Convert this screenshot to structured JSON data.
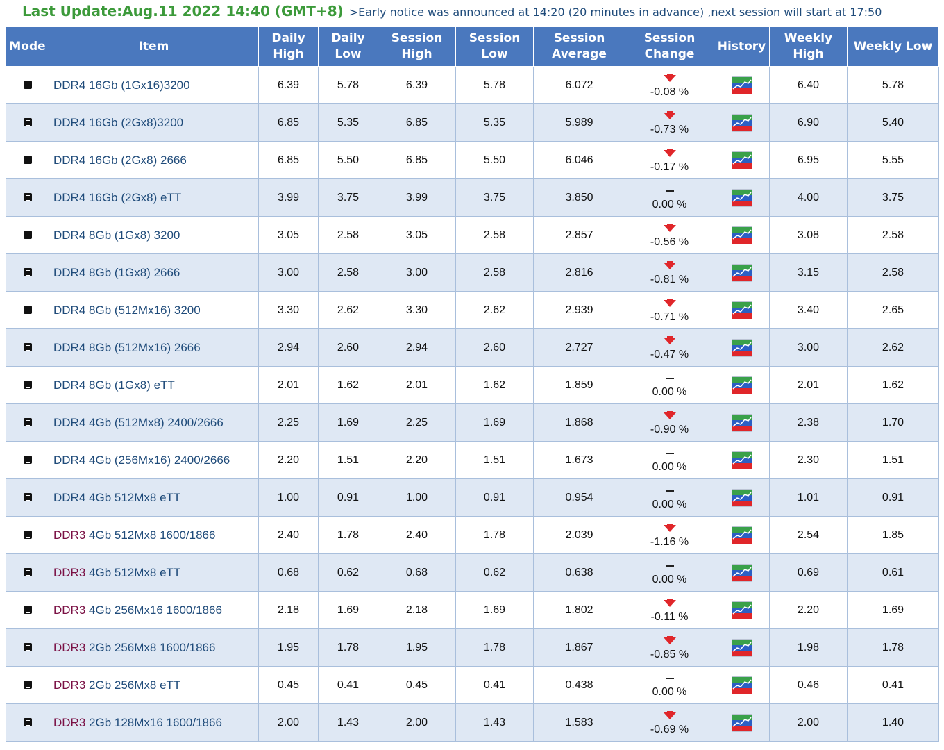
{
  "header": {
    "last_update": "Last Update:Aug.11 2022 14:40 (GMT+8)",
    "notice": ">Early notice was announced at 14:20 (20 minutes in advance) ,next session will start at 17:50"
  },
  "table": {
    "columns": [
      "Mode",
      "Item",
      "Daily High",
      "Daily Low",
      "Session High",
      "Session Low",
      "Session Average",
      "Session Change",
      "History",
      "Weekly High",
      "Weekly Low"
    ],
    "rows": [
      {
        "gen": "DDR4",
        "spec": "16Gb (1Gx16)3200",
        "daily_high": "6.39",
        "daily_low": "5.78",
        "session_high": "6.39",
        "session_low": "5.78",
        "session_avg": "6.072",
        "dir": "down",
        "change": "-0.08 %",
        "weekly_high": "6.40",
        "weekly_low": "5.78"
      },
      {
        "gen": "DDR4",
        "spec": "16Gb (2Gx8)3200",
        "daily_high": "6.85",
        "daily_low": "5.35",
        "session_high": "6.85",
        "session_low": "5.35",
        "session_avg": "5.989",
        "dir": "down",
        "change": "-0.73 %",
        "weekly_high": "6.90",
        "weekly_low": "5.40"
      },
      {
        "gen": "DDR4",
        "spec": "16Gb (2Gx8) 2666",
        "daily_high": "6.85",
        "daily_low": "5.50",
        "session_high": "6.85",
        "session_low": "5.50",
        "session_avg": "6.046",
        "dir": "down",
        "change": "-0.17 %",
        "weekly_high": "6.95",
        "weekly_low": "5.55"
      },
      {
        "gen": "DDR4",
        "spec": "16Gb (2Gx8) eTT",
        "daily_high": "3.99",
        "daily_low": "3.75",
        "session_high": "3.99",
        "session_low": "3.75",
        "session_avg": "3.850",
        "dir": "flat",
        "change": "0.00 %",
        "weekly_high": "4.00",
        "weekly_low": "3.75"
      },
      {
        "gen": "DDR4",
        "spec": "8Gb (1Gx8) 3200",
        "daily_high": "3.05",
        "daily_low": "2.58",
        "session_high": "3.05",
        "session_low": "2.58",
        "session_avg": "2.857",
        "dir": "down",
        "change": "-0.56 %",
        "weekly_high": "3.08",
        "weekly_low": "2.58"
      },
      {
        "gen": "DDR4",
        "spec": "8Gb (1Gx8) 2666",
        "daily_high": "3.00",
        "daily_low": "2.58",
        "session_high": "3.00",
        "session_low": "2.58",
        "session_avg": "2.816",
        "dir": "down",
        "change": "-0.81 %",
        "weekly_high": "3.15",
        "weekly_low": "2.58"
      },
      {
        "gen": "DDR4",
        "spec": "8Gb (512Mx16) 3200",
        "daily_high": "3.30",
        "daily_low": "2.62",
        "session_high": "3.30",
        "session_low": "2.62",
        "session_avg": "2.939",
        "dir": "down",
        "change": "-0.71 %",
        "weekly_high": "3.40",
        "weekly_low": "2.65"
      },
      {
        "gen": "DDR4",
        "spec": "8Gb (512Mx16) 2666",
        "daily_high": "2.94",
        "daily_low": "2.60",
        "session_high": "2.94",
        "session_low": "2.60",
        "session_avg": "2.727",
        "dir": "down",
        "change": "-0.47 %",
        "weekly_high": "3.00",
        "weekly_low": "2.62"
      },
      {
        "gen": "DDR4",
        "spec": "8Gb (1Gx8) eTT",
        "daily_high": "2.01",
        "daily_low": "1.62",
        "session_high": "2.01",
        "session_low": "1.62",
        "session_avg": "1.859",
        "dir": "flat",
        "change": "0.00 %",
        "weekly_high": "2.01",
        "weekly_low": "1.62"
      },
      {
        "gen": "DDR4",
        "spec": "4Gb (512Mx8) 2400/2666",
        "daily_high": "2.25",
        "daily_low": "1.69",
        "session_high": "2.25",
        "session_low": "1.69",
        "session_avg": "1.868",
        "dir": "down",
        "change": "-0.90 %",
        "weekly_high": "2.38",
        "weekly_low": "1.70"
      },
      {
        "gen": "DDR4",
        "spec": "4Gb (256Mx16) 2400/2666",
        "daily_high": "2.20",
        "daily_low": "1.51",
        "session_high": "2.20",
        "session_low": "1.51",
        "session_avg": "1.673",
        "dir": "flat",
        "change": "0.00 %",
        "weekly_high": "2.30",
        "weekly_low": "1.51"
      },
      {
        "gen": "DDR4",
        "spec": "4Gb 512Mx8 eTT",
        "daily_high": "1.00",
        "daily_low": "0.91",
        "session_high": "1.00",
        "session_low": "0.91",
        "session_avg": "0.954",
        "dir": "flat",
        "change": "0.00 %",
        "weekly_high": "1.01",
        "weekly_low": "0.91"
      },
      {
        "gen": "DDR3",
        "spec": "4Gb 512Mx8 1600/1866",
        "daily_high": "2.40",
        "daily_low": "1.78",
        "session_high": "2.40",
        "session_low": "1.78",
        "session_avg": "2.039",
        "dir": "down",
        "change": "-1.16 %",
        "weekly_high": "2.54",
        "weekly_low": "1.85"
      },
      {
        "gen": "DDR3",
        "spec": "4Gb 512Mx8 eTT",
        "daily_high": "0.68",
        "daily_low": "0.62",
        "session_high": "0.68",
        "session_low": "0.62",
        "session_avg": "0.638",
        "dir": "flat",
        "change": "0.00 %",
        "weekly_high": "0.69",
        "weekly_low": "0.61"
      },
      {
        "gen": "DDR3",
        "spec": "4Gb 256Mx16 1600/1866",
        "daily_high": "2.18",
        "daily_low": "1.69",
        "session_high": "2.18",
        "session_low": "1.69",
        "session_avg": "1.802",
        "dir": "down",
        "change": "-0.11 %",
        "weekly_high": "2.20",
        "weekly_low": "1.69"
      },
      {
        "gen": "DDR3",
        "spec": "2Gb 256Mx8 1600/1866",
        "daily_high": "1.95",
        "daily_low": "1.78",
        "session_high": "1.95",
        "session_low": "1.78",
        "session_avg": "1.867",
        "dir": "down",
        "change": "-0.85 %",
        "weekly_high": "1.98",
        "weekly_low": "1.78"
      },
      {
        "gen": "DDR3",
        "spec": "2Gb 256Mx8 eTT",
        "daily_high": "0.45",
        "daily_low": "0.41",
        "session_high": "0.45",
        "session_low": "0.41",
        "session_avg": "0.438",
        "dir": "flat",
        "change": "0.00 %",
        "weekly_high": "0.46",
        "weekly_low": "0.41"
      },
      {
        "gen": "DDR3",
        "spec": "2Gb 128Mx16 1600/1866",
        "daily_high": "2.00",
        "daily_low": "1.43",
        "session_high": "2.00",
        "session_low": "1.43",
        "session_avg": "1.583",
        "dir": "down",
        "change": "-0.69 %",
        "weekly_high": "2.00",
        "weekly_low": "1.40"
      }
    ]
  },
  "icons": {
    "mode": "mode-c-icon",
    "down": "down-arrow-icon",
    "flat": "dash-icon",
    "history": "history-chart-icon"
  },
  "colors": {
    "header_bg": "#4a78be",
    "row_alt": "#dfe8f4",
    "last_update": "#3c9a3a",
    "link": "#1f4b7a",
    "ddr3": "#7a1044",
    "down_arrow": "#e0262a"
  }
}
